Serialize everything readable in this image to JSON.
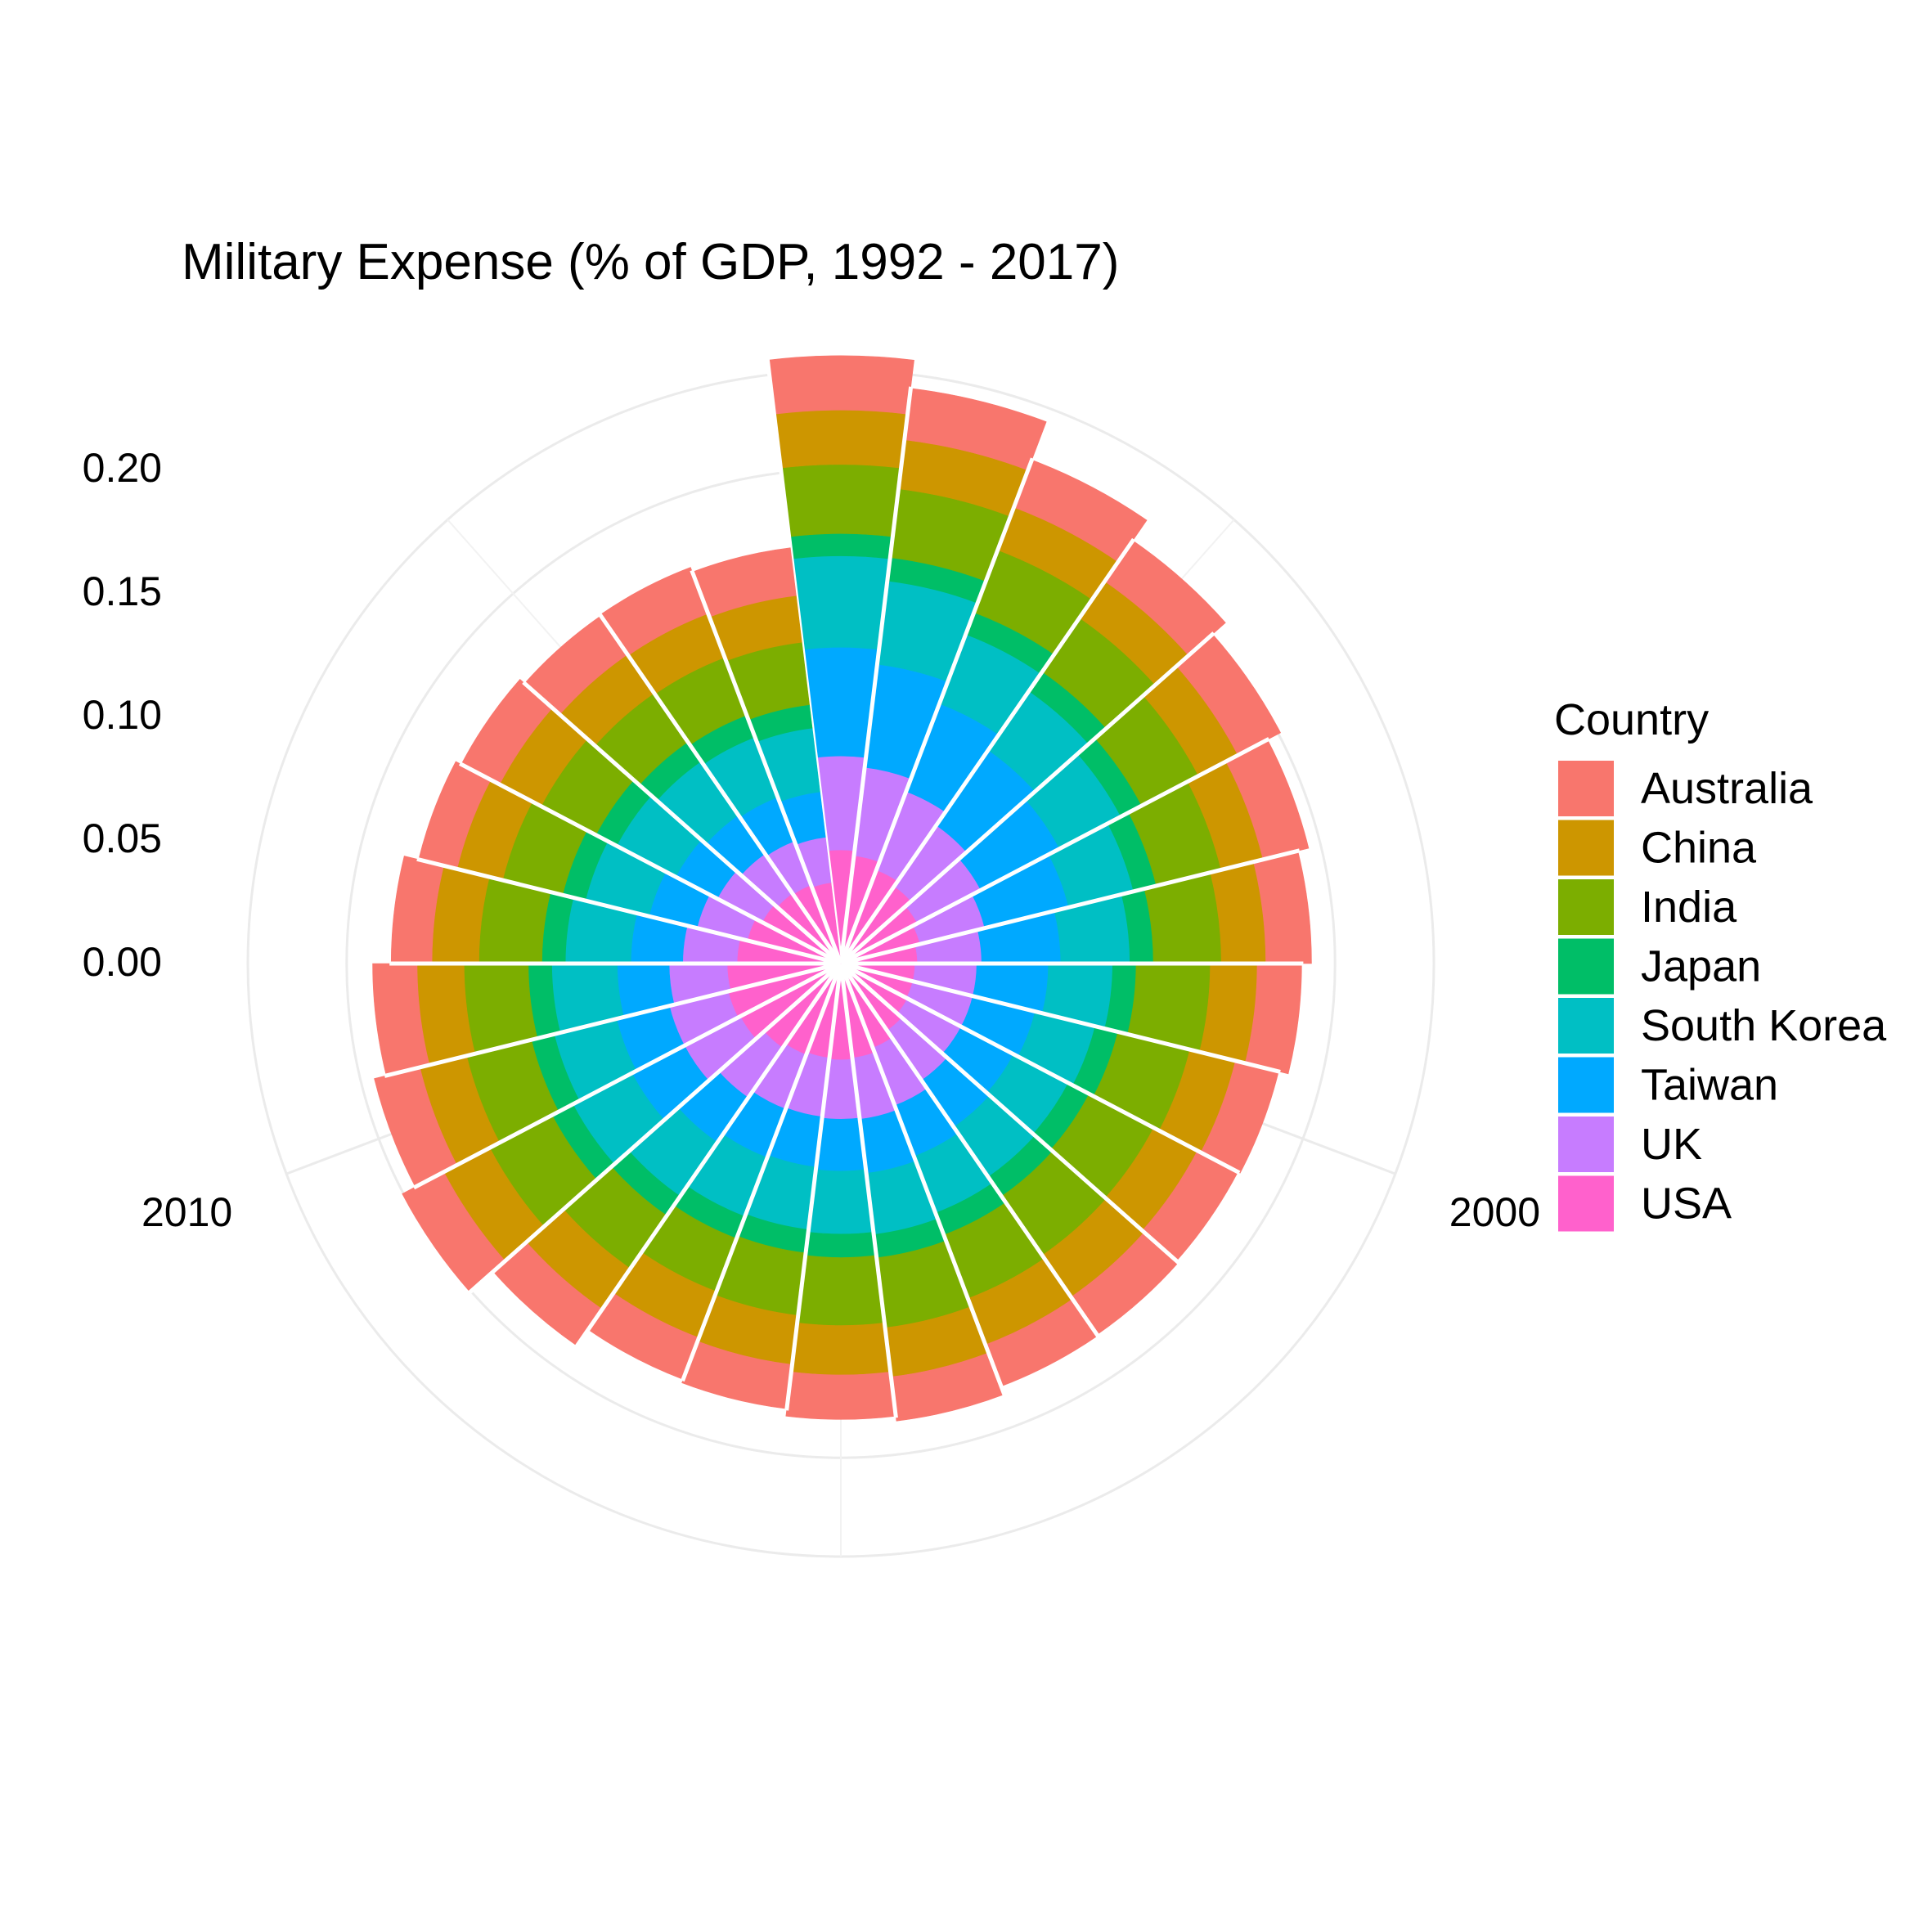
{
  "chart_data": {
    "type": "bar",
    "coord": "polar",
    "stacked": true,
    "title": "Military Expense (% of GDP, 1992 - 2017)",
    "xlabel": "",
    "ylabel": "",
    "x": [
      1992,
      1993,
      1994,
      1995,
      1996,
      1997,
      1998,
      1999,
      2000,
      2001,
      2002,
      2003,
      2004,
      2005,
      2006,
      2007,
      2008,
      2009,
      2010,
      2011,
      2012,
      2013,
      2014,
      2015,
      2016,
      2017
    ],
    "x_tick_labels": [
      "2000",
      "2010"
    ],
    "x_tick_values": [
      2000,
      2010
    ],
    "y_tick_labels": [
      "0.00",
      "0.05",
      "0.10",
      "0.15",
      "0.20"
    ],
    "ylim": [
      0,
      0.24
    ],
    "grid": true,
    "legend": {
      "title": "Country",
      "position": "right"
    },
    "series": [
      {
        "name": "Australia",
        "color": "#F8766D",
        "values": [
          0.022,
          0.021,
          0.0205,
          0.02,
          0.0195,
          0.019,
          0.0185,
          0.018,
          0.018,
          0.0185,
          0.0185,
          0.018,
          0.018,
          0.018,
          0.018,
          0.018,
          0.018,
          0.019,
          0.019,
          0.018,
          0.0165,
          0.016,
          0.0175,
          0.019,
          0.02,
          0.0195
        ]
      },
      {
        "name": "China",
        "color": "#CD9600",
        "values": [
          0.022,
          0.02,
          0.0185,
          0.018,
          0.018,
          0.0175,
          0.018,
          0.019,
          0.019,
          0.02,
          0.0205,
          0.02,
          0.02,
          0.02,
          0.02,
          0.02,
          0.02,
          0.021,
          0.0195,
          0.019,
          0.019,
          0.019,
          0.019,
          0.019,
          0.019,
          0.019
        ]
      },
      {
        "name": "India",
        "color": "#7CAE00",
        "values": [
          0.028,
          0.028,
          0.027,
          0.0265,
          0.026,
          0.027,
          0.0275,
          0.03,
          0.03,
          0.0295,
          0.029,
          0.0275,
          0.0285,
          0.0275,
          0.0255,
          0.023,
          0.026,
          0.0285,
          0.027,
          0.026,
          0.0255,
          0.025,
          0.025,
          0.024,
          0.025,
          0.0255
        ]
      },
      {
        "name": "Japan",
        "color": "#00BE67",
        "values": [
          0.009,
          0.0095,
          0.0095,
          0.0095,
          0.0095,
          0.0095,
          0.0095,
          0.0095,
          0.0095,
          0.0095,
          0.0095,
          0.0095,
          0.0095,
          0.0095,
          0.0095,
          0.0095,
          0.0095,
          0.0095,
          0.0095,
          0.0095,
          0.0095,
          0.0095,
          0.0095,
          0.0095,
          0.0095,
          0.0095
        ]
      },
      {
        "name": "South Korea",
        "color": "#00BFC4",
        "values": [
          0.037,
          0.034,
          0.03,
          0.029,
          0.028,
          0.027,
          0.028,
          0.026,
          0.025,
          0.025,
          0.0245,
          0.0245,
          0.025,
          0.0255,
          0.0255,
          0.0255,
          0.0265,
          0.027,
          0.026,
          0.0265,
          0.0265,
          0.0265,
          0.027,
          0.0265,
          0.026,
          0.026
        ]
      },
      {
        "name": "Taiwan",
        "color": "#00A9FF",
        "values": [
          0.044,
          0.042,
          0.038,
          0.037,
          0.036,
          0.035,
          0.032,
          0.029,
          0.026,
          0.024,
          0.023,
          0.022,
          0.022,
          0.021,
          0.0205,
          0.021,
          0.022,
          0.024,
          0.022,
          0.021,
          0.021,
          0.02,
          0.019,
          0.019,
          0.019,
          0.0185
        ]
      },
      {
        "name": "UK",
        "color": "#C77CFF",
        "values": [
          0.038,
          0.036,
          0.034,
          0.03,
          0.029,
          0.027,
          0.026,
          0.025,
          0.025,
          0.0245,
          0.0245,
          0.025,
          0.025,
          0.024,
          0.024,
          0.0235,
          0.0245,
          0.0255,
          0.0245,
          0.0235,
          0.022,
          0.021,
          0.0205,
          0.0195,
          0.019,
          0.0185
        ]
      },
      {
        "name": "USA",
        "color": "#FF61CC",
        "values": [
          0.046,
          0.044,
          0.0405,
          0.038,
          0.035,
          0.033,
          0.031,
          0.03,
          0.03,
          0.0305,
          0.033,
          0.0365,
          0.0385,
          0.039,
          0.0385,
          0.0395,
          0.0415,
          0.046,
          0.047,
          0.046,
          0.042,
          0.039,
          0.036,
          0.0345,
          0.034,
          0.033
        ]
      }
    ]
  }
}
